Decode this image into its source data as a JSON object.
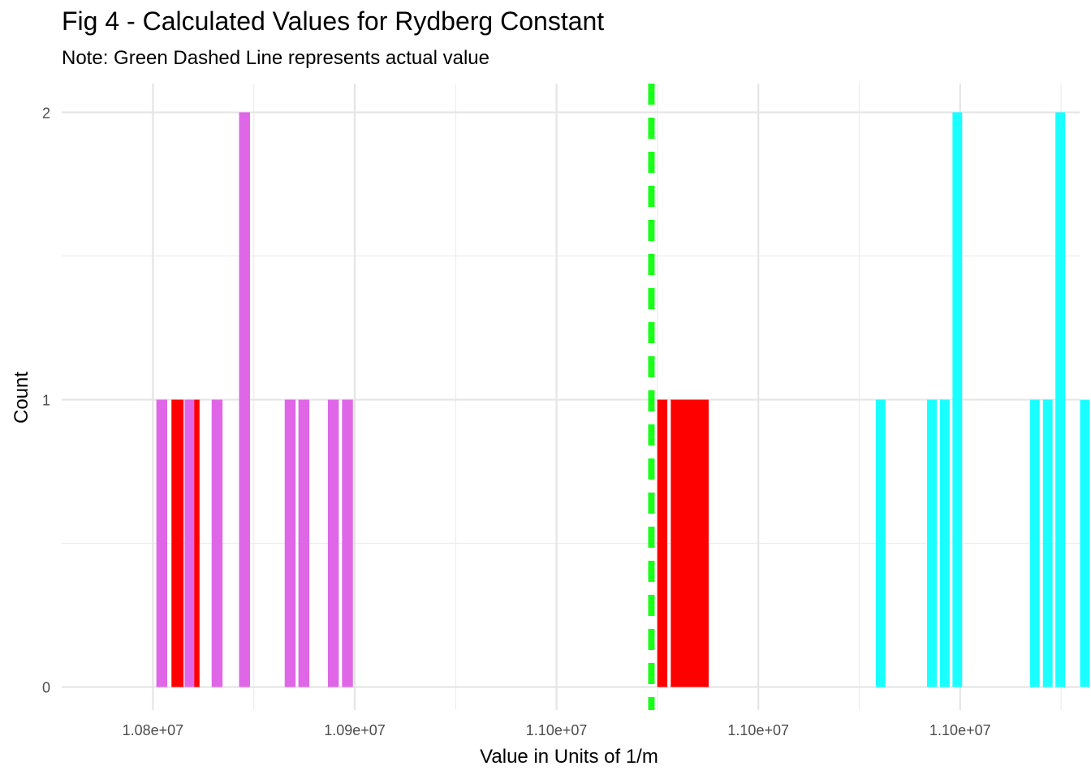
{
  "chart_data": {
    "type": "bar",
    "title": "Fig 4 - Calculated Values for Rydberg Constant",
    "subtitle": "Note: Green Dashed Line represents actual value",
    "xlabel": "Value in Units of 1/m",
    "ylabel": "Count",
    "xlim": [
      10777400,
      11029600
    ],
    "ylim": [
      -0.08,
      2.1
    ],
    "x_ticks": [
      {
        "value": 10800000,
        "label": "1.08e+07"
      },
      {
        "value": 10850000,
        "label": "1.09e+07"
      },
      {
        "value": 10900000,
        "label": "1.10e+07"
      },
      {
        "value": 10950000,
        "label": "1.10e+07"
      },
      {
        "value": 11000000,
        "label": "1.10e+07"
      }
    ],
    "y_ticks": [
      {
        "value": 0,
        "label": "0"
      },
      {
        "value": 1,
        "label": "1"
      },
      {
        "value": 2,
        "label": "2"
      }
    ],
    "grid": true,
    "legend": "none",
    "reference_line": {
      "value": 10923500,
      "color": "#00ff00",
      "style": "dashed"
    },
    "series": [
      {
        "color": "#e066e8",
        "bars": [
          {
            "x": 10802200,
            "width": 2700,
            "count": 1
          },
          {
            "x": 10809200,
            "width": 2700,
            "count": 1
          },
          {
            "x": 10815900,
            "width": 2700,
            "count": 1
          },
          {
            "x": 10822700,
            "width": 2700,
            "count": 2
          },
          {
            "x": 10834000,
            "width": 2700,
            "count": 1
          },
          {
            "x": 10837400,
            "width": 2700,
            "count": 1
          },
          {
            "x": 10844700,
            "width": 2700,
            "count": 1
          },
          {
            "x": 10848200,
            "width": 2700,
            "count": 1
          }
        ]
      },
      {
        "color": "#ff0000",
        "bars": [
          {
            "x": 10806100,
            "width": 3000,
            "count": 1
          },
          {
            "x": 10810900,
            "width": 1300,
            "count": 1
          },
          {
            "x": 10926200,
            "width": 2500,
            "count": 1
          },
          {
            "x": 10933000,
            "width": 9400,
            "count": 1
          }
        ]
      },
      {
        "color": "#1affff",
        "bars": [
          {
            "x": 10980300,
            "width": 2400,
            "count": 1
          },
          {
            "x": 10993000,
            "width": 2400,
            "count": 1
          },
          {
            "x": 10996200,
            "width": 2400,
            "count": 1
          },
          {
            "x": 10999300,
            "width": 2400,
            "count": 2
          },
          {
            "x": 11018500,
            "width": 2400,
            "count": 1
          },
          {
            "x": 11021700,
            "width": 2400,
            "count": 1
          },
          {
            "x": 11024800,
            "width": 2400,
            "count": 2
          },
          {
            "x": 11030900,
            "width": 2400,
            "count": 1
          }
        ]
      }
    ]
  }
}
